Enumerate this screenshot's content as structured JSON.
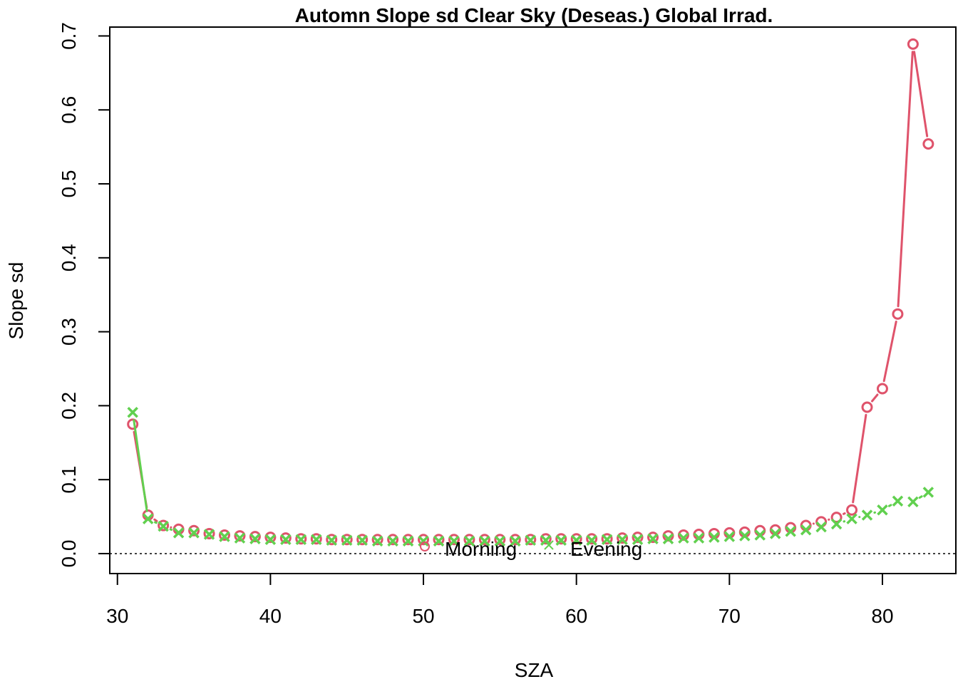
{
  "chart_data": {
    "type": "line",
    "title": "Automn Slope sd Clear Sky (Deseas.) Global Irrad.",
    "xlabel": "SZA",
    "ylabel": "Slope sd",
    "xlim": [
      29.5,
      84.8
    ],
    "ylim": [
      -0.027,
      0.712
    ],
    "xticks": [
      30,
      40,
      50,
      60,
      70,
      80
    ],
    "yticks": [
      0.0,
      0.1,
      0.2,
      0.3,
      0.4,
      0.5,
      0.6,
      0.7
    ],
    "ytick_labels": [
      "0.0",
      "0.1",
      "0.2",
      "0.3",
      "0.4",
      "0.5",
      "0.6",
      "0.7"
    ],
    "reference_line": {
      "y": 0,
      "style": "dotted"
    },
    "legend": {
      "position": "bottom-center",
      "entries": [
        {
          "label": "Morning",
          "marker": "circle",
          "color": "#DF536B"
        },
        {
          "label": "Evening",
          "marker": "cross",
          "color": "#61D04F"
        }
      ]
    },
    "x": [
      31,
      32,
      33,
      34,
      35,
      36,
      37,
      38,
      39,
      40,
      41,
      42,
      43,
      44,
      45,
      46,
      47,
      48,
      49,
      50,
      51,
      52,
      53,
      54,
      55,
      56,
      57,
      58,
      59,
      60,
      61,
      62,
      63,
      64,
      65,
      66,
      67,
      68,
      69,
      70,
      71,
      72,
      73,
      74,
      75,
      76,
      77,
      78,
      79,
      80,
      81,
      82,
      83
    ],
    "series": [
      {
        "name": "Morning",
        "marker": "circle",
        "color": "#DF536B",
        "values": [
          0.175,
          0.052,
          0.038,
          0.033,
          0.031,
          0.027,
          0.025,
          0.024,
          0.023,
          0.022,
          0.021,
          0.02,
          0.02,
          0.019,
          0.019,
          0.019,
          0.019,
          0.019,
          0.019,
          0.019,
          0.019,
          0.019,
          0.019,
          0.019,
          0.019,
          0.019,
          0.019,
          0.02,
          0.02,
          0.02,
          0.02,
          0.02,
          0.021,
          0.022,
          0.022,
          0.024,
          0.025,
          0.026,
          0.027,
          0.028,
          0.029,
          0.031,
          0.032,
          0.035,
          0.038,
          0.043,
          0.049,
          0.059,
          0.198,
          0.223,
          0.324,
          0.689,
          0.554
        ]
      },
      {
        "name": "Evening",
        "marker": "cross",
        "color": "#61D04F",
        "values": [
          0.191,
          0.047,
          0.037,
          0.028,
          0.028,
          0.026,
          0.023,
          0.021,
          0.02,
          0.019,
          0.019,
          0.019,
          0.019,
          0.018,
          0.018,
          0.018,
          0.017,
          0.017,
          0.017,
          0.017,
          0.017,
          0.017,
          0.017,
          0.017,
          0.017,
          0.017,
          0.018,
          0.018,
          0.018,
          0.018,
          0.018,
          0.019,
          0.019,
          0.019,
          0.02,
          0.02,
          0.021,
          0.021,
          0.022,
          0.023,
          0.024,
          0.025,
          0.027,
          0.03,
          0.032,
          0.036,
          0.04,
          0.047,
          0.052,
          0.059,
          0.071,
          0.07,
          0.083
        ]
      }
    ]
  }
}
